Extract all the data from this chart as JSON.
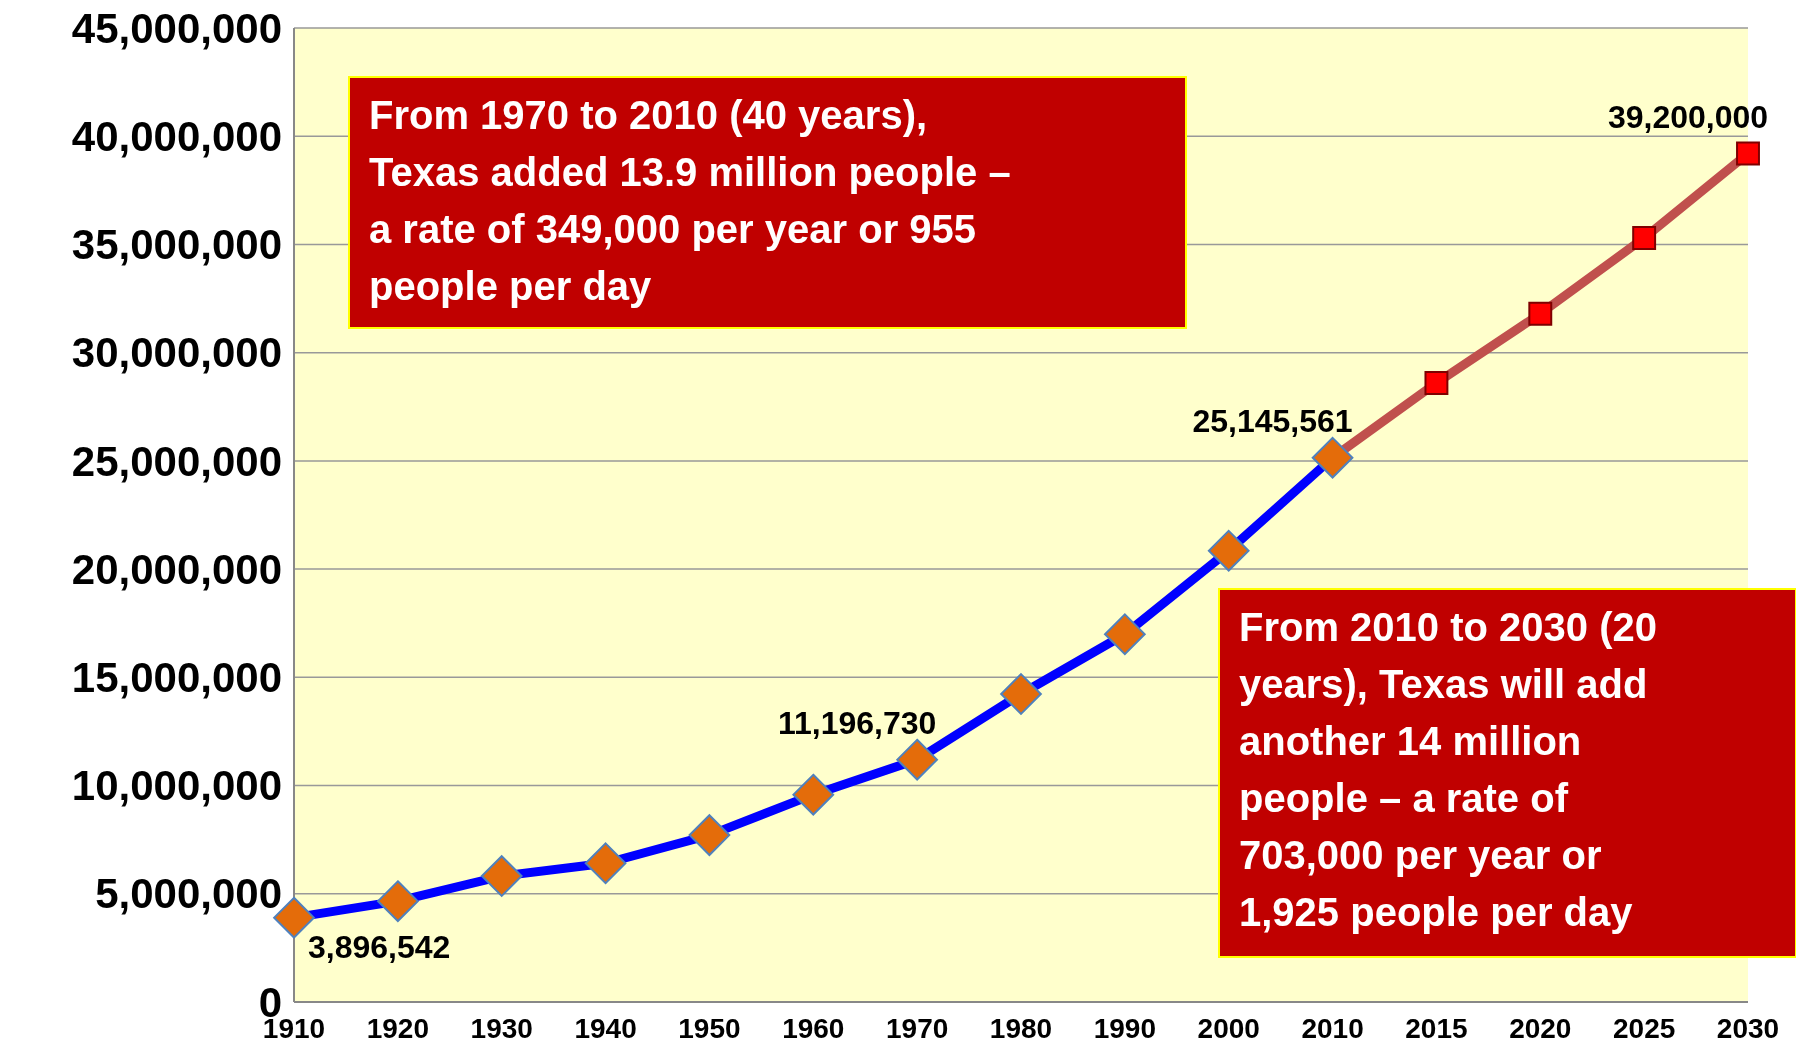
{
  "chart_data": {
    "type": "line",
    "categories": [
      "1910",
      "1920",
      "1930",
      "1940",
      "1950",
      "1960",
      "1970",
      "1980",
      "1990",
      "2000",
      "2010",
      "2015",
      "2020",
      "2025",
      "2030"
    ],
    "series": [
      {
        "color": "#c0504d",
        "marker": "square",
        "colors": [
          null,
          null,
          null,
          null,
          null,
          null,
          null,
          null,
          null,
          null,
          null,
          "#ff0000",
          "#ff0000",
          "#ff0000",
          "#ff0000"
        ],
        "values": [
          null,
          null,
          null,
          null,
          null,
          null,
          null,
          null,
          null,
          null,
          25145561,
          28600000,
          31800000,
          35300000,
          39200000
        ],
        "value_labels": [
          null,
          null,
          null,
          null,
          null,
          null,
          null,
          null,
          null,
          null,
          null,
          null,
          null,
          null,
          "39,200,000"
        ]
      },
      {
        "color": "#0000ff",
        "marker": "diamond",
        "colors": [
          "#e46c0a",
          "#e46c0a",
          "#e46c0a",
          "#e46c0a",
          "#e46c0a",
          "#e46c0a",
          "#e46c0a",
          "#e46c0a",
          "#e46c0a",
          "#e46c0a",
          "#e46c0a",
          null,
          null,
          null,
          null
        ],
        "values": [
          3896542,
          4660000,
          5820000,
          6410000,
          7710000,
          9580000,
          11196730,
          14230000,
          16990000,
          20850000,
          25145561,
          null,
          null,
          null,
          null
        ],
        "value_labels": [
          "3,896,542",
          null,
          null,
          null,
          null,
          null,
          "11,196,730",
          null,
          null,
          null,
          "25,145,561",
          null,
          null,
          null,
          null
        ]
      }
    ],
    "ylim": [
      0,
      45000000
    ],
    "yticks": [
      {
        "value": 0,
        "label": "0"
      },
      {
        "value": 5000000,
        "label": "5,000,000"
      },
      {
        "value": 10000000,
        "label": "10,000,000"
      },
      {
        "value": 15000000,
        "label": "15,000,000"
      },
      {
        "value": 20000000,
        "label": "20,000,000"
      },
      {
        "value": 25000000,
        "label": "25,000,000"
      },
      {
        "value": 30000000,
        "label": "30,000,000"
      },
      {
        "value": 35000000,
        "label": "35,000,000"
      },
      {
        "value": 40000000,
        "label": "40,000,000"
      },
      {
        "value": 45000000,
        "label": "45,000,000"
      }
    ],
    "grid": "y",
    "annotations": [
      "From 1970 to 2010 (40 years), Texas added 13.9 million people – a rate of 349,000 per year or 955 people per day",
      "From 2010 to 2030 (20 years), Texas will add another 14 million people – a rate of 703,000 per year or 1,925 people per day"
    ]
  }
}
